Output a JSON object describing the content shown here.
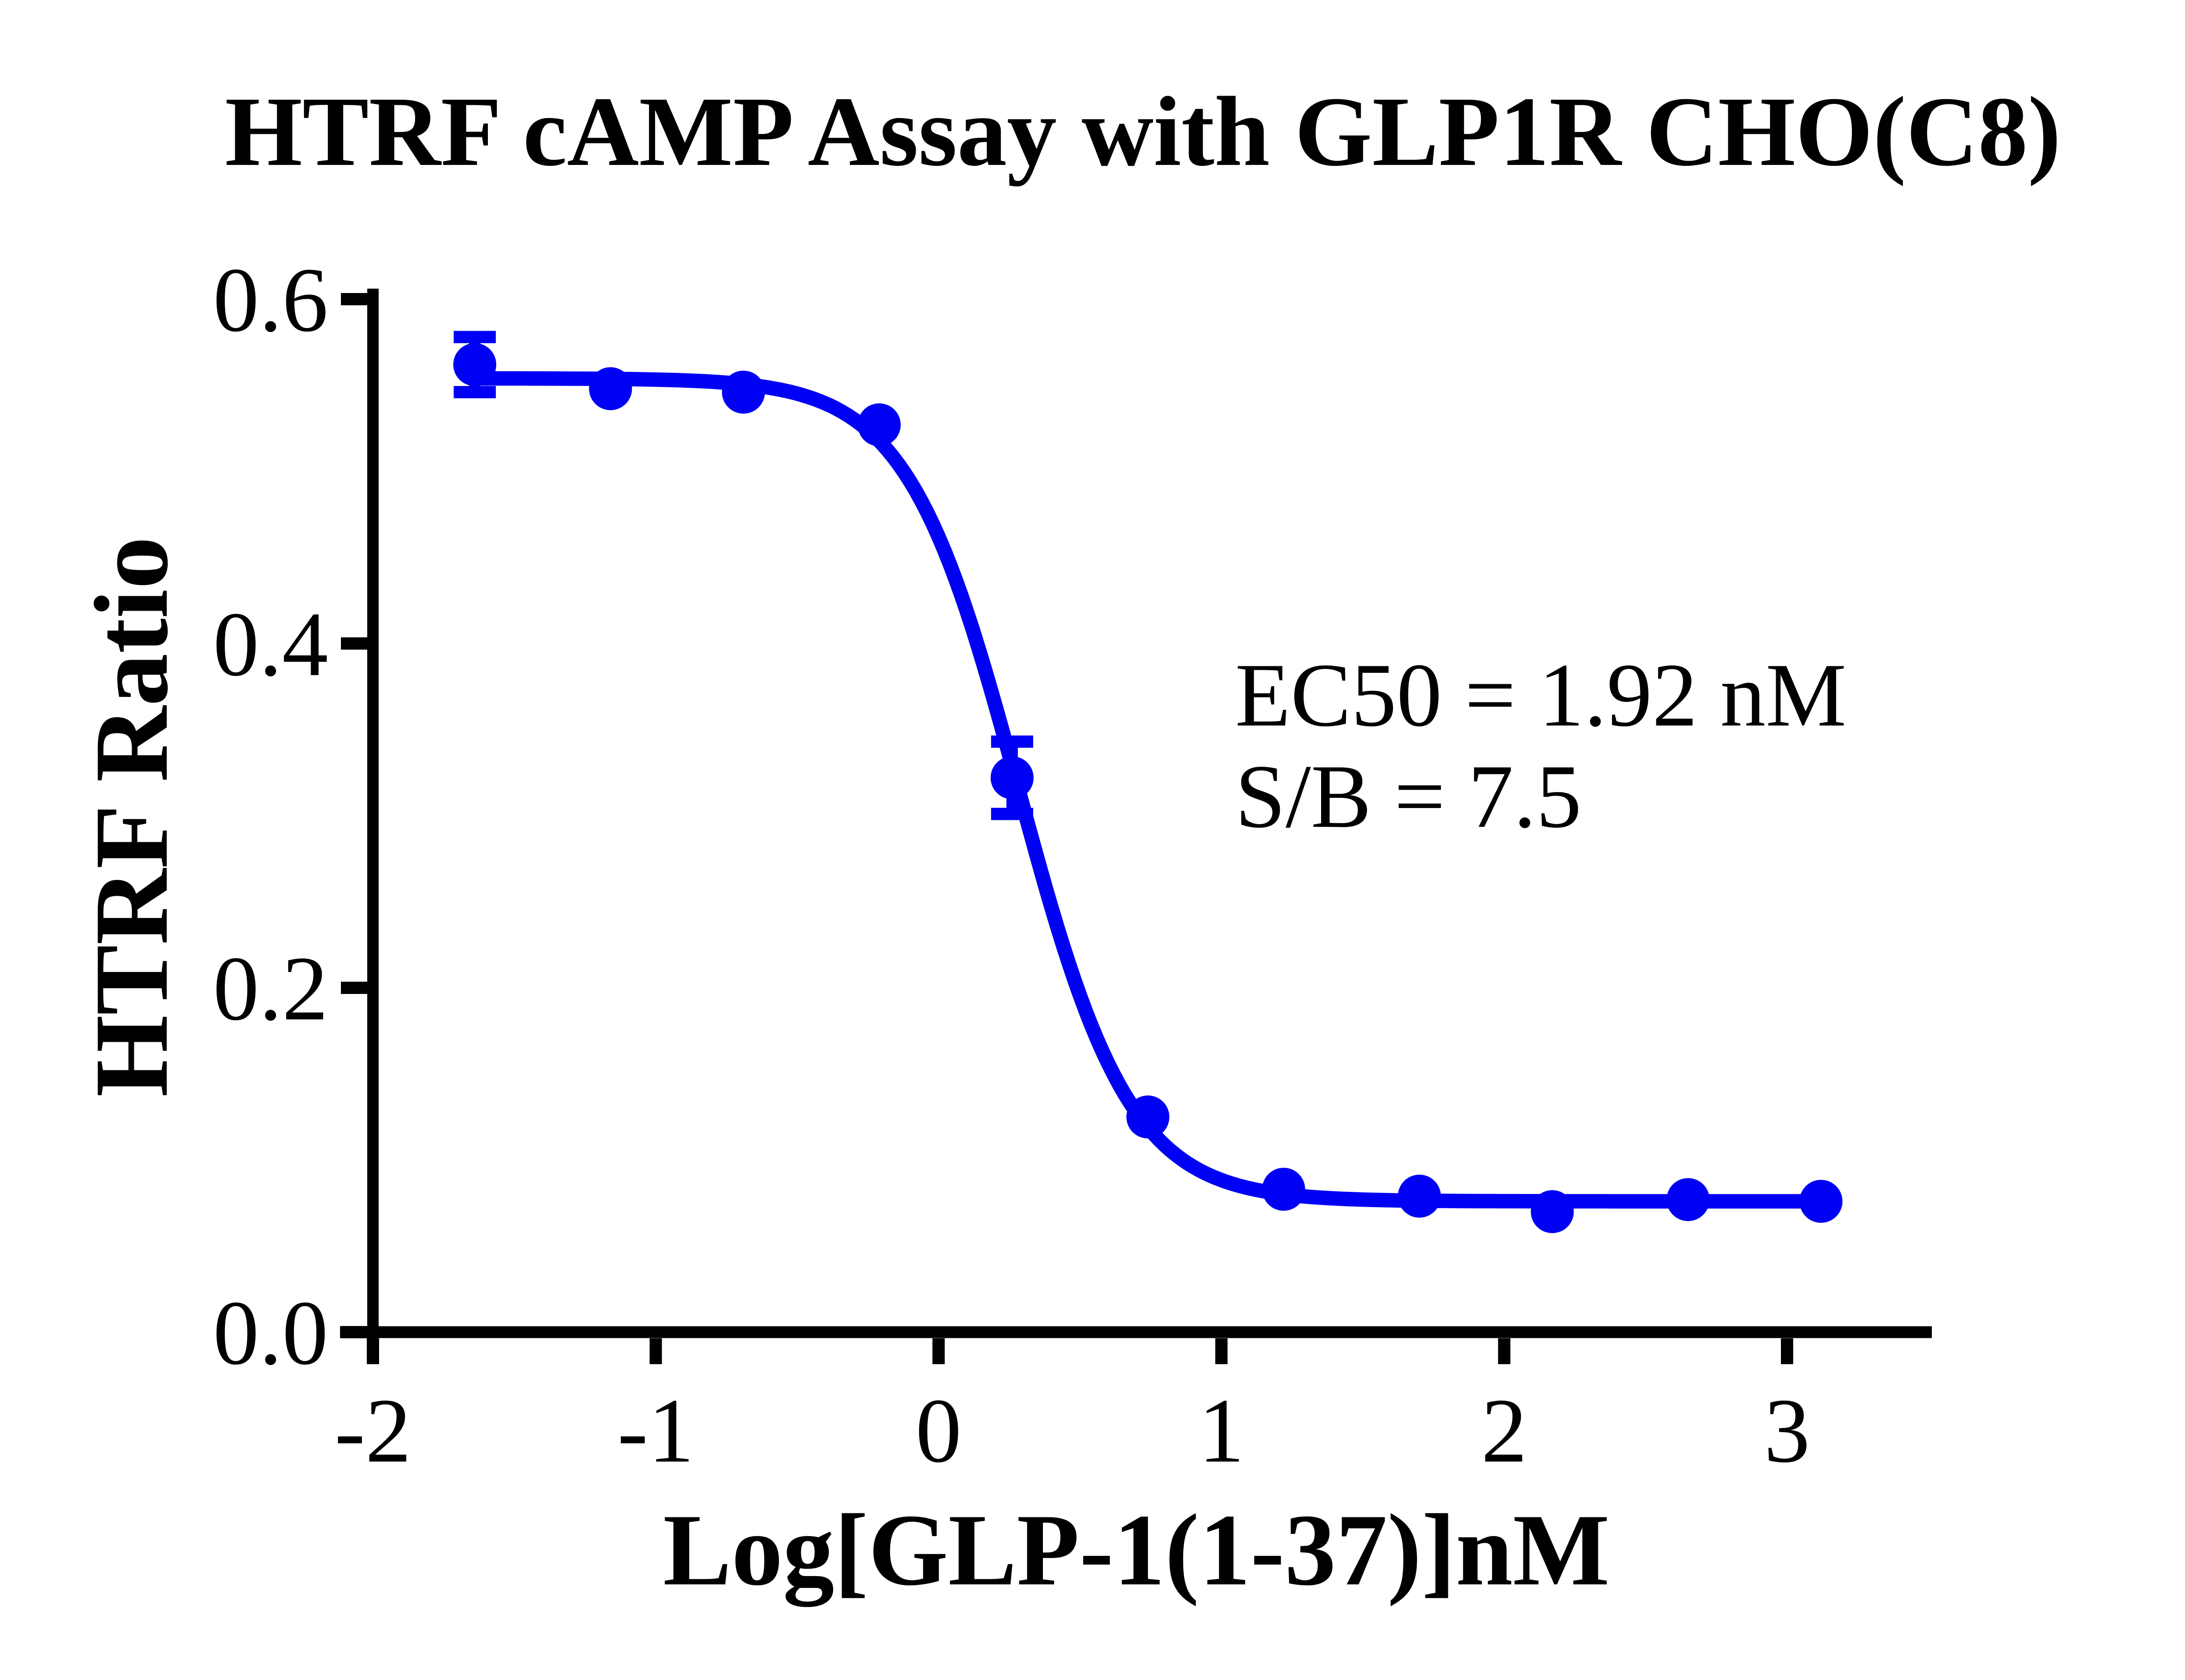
{
  "chart_data": {
    "type": "scatter",
    "title": "HTRF cAMP Assay with GLP1R CHO(C8)",
    "xlabel": "Log[GLP-1(1-37)]nM",
    "ylabel": "HTRF Ratio",
    "x_ticks": [
      -2,
      -1,
      0,
      1,
      2,
      3
    ],
    "y_ticks": [
      0,
      0.2,
      0.4,
      0.6
    ],
    "y_tick_labels": [
      "0.0",
      "0.2",
      "0.4",
      "0.6"
    ],
    "x_axis_range_log": [
      -2.12,
      3.51
    ],
    "y_axis_range": [
      0,
      0.62
    ],
    "grid": false,
    "legend_position": "none",
    "series": [
      {
        "name": "GLP-1(1-37)",
        "marker": "filled-circle",
        "color": "#0000F5",
        "x_log": [
          -1.64,
          -1.16,
          -0.69,
          -0.21,
          0.26,
          0.74,
          1.22,
          1.7,
          2.17,
          2.65,
          3.12
        ],
        "y": [
          0.562,
          0.548,
          0.546,
          0.527,
          0.322,
          0.125,
          0.083,
          0.079,
          0.07,
          0.077,
          0.076
        ],
        "y_err": [
          0.016,
          0,
          0,
          0,
          0.021,
          0,
          0,
          0,
          0,
          0,
          0
        ]
      }
    ],
    "fit_curve": {
      "model": "4PL",
      "top": 0.554,
      "bottom": 0.076,
      "log_ec50": 0.283,
      "hill_slope": -2.2,
      "x_start": -1.64,
      "x_end": 3.12
    },
    "annotations": {
      "line1": "EC50 = 1.92 nM",
      "line2": "S/B = 7.5"
    },
    "ec50_nM": 1.92,
    "signal_to_background": 7.5
  },
  "colors": {
    "accent": "#0000F5",
    "text": "#000000",
    "background": "#FFFFFF"
  }
}
